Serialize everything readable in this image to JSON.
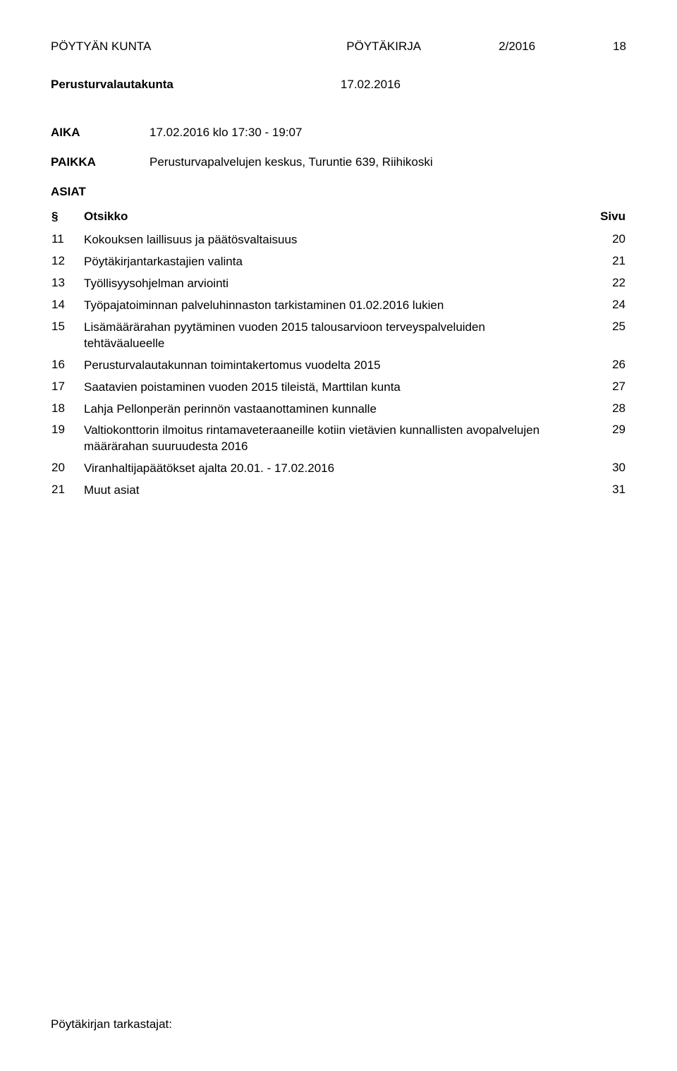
{
  "header": {
    "org": "PÖYTYÄN KUNTA",
    "doc_type": "PÖYTÄKIRJA",
    "doc_number": "2/2016",
    "page_number": "18"
  },
  "committee": {
    "name": "Perusturvalautakunta",
    "date": "17.02.2016"
  },
  "meta": {
    "aika_label": "AIKA",
    "aika_value": "17.02.2016  klo 17:30 - 19:07",
    "paikka_label": "PAIKKA",
    "paikka_value": "Perusturvapalvelujen keskus, Turuntie 639, Riihikoski",
    "asiat_label": "ASIAT"
  },
  "table": {
    "columns": {
      "section": "§",
      "title": "Otsikko",
      "page": "Sivu"
    },
    "rows": [
      {
        "num": "11",
        "title": "Kokouksen laillisuus ja päätösvaltaisuus",
        "page": "20"
      },
      {
        "num": "12",
        "title": "Pöytäkirjantarkastajien valinta",
        "page": "21"
      },
      {
        "num": "13",
        "title": "Työllisyysohjelman arviointi",
        "page": "22"
      },
      {
        "num": "14",
        "title": "Työpajatoiminnan palveluhinnaston tarkistaminen 01.02.2016 lukien",
        "page": "24"
      },
      {
        "num": "15",
        "title": "Lisämäärärahan pyytäminen vuoden 2015 talousarvioon terveyspalveluiden tehtäväalueelle",
        "page": "25"
      },
      {
        "num": "16",
        "title": "Perusturvalautakunnan toimintakertomus vuodelta 2015",
        "page": "26"
      },
      {
        "num": "17",
        "title": "Saatavien poistaminen vuoden 2015 tileistä, Marttilan kunta",
        "page": "27"
      },
      {
        "num": "18",
        "title": "Lahja Pellonperän perinnön vastaanottaminen kunnalle",
        "page": "28"
      },
      {
        "num": "19",
        "title": "Valtiokonttorin ilmoitus rintamaveteraaneille kotiin vietävien kunnallisten avopalvelujen määrärahan suuruudesta 2016",
        "page": "29"
      },
      {
        "num": "20",
        "title": "Viranhaltijapäätökset ajalta 20.01. - 17.02.2016",
        "page": "30"
      },
      {
        "num": "21",
        "title": "Muut asiat",
        "page": "31"
      }
    ]
  },
  "footer": {
    "text": "Pöytäkirjan tarkastajat:"
  }
}
